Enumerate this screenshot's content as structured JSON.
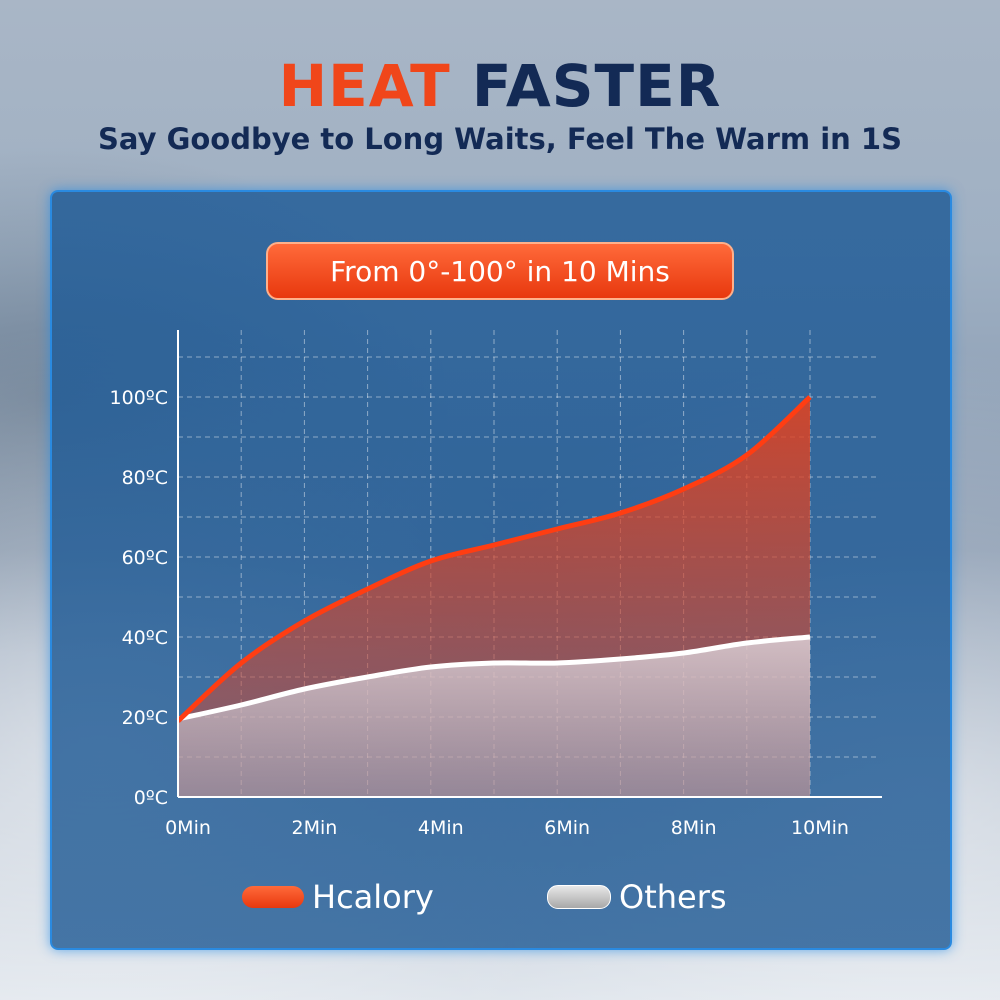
{
  "header": {
    "title_accent": "HEAT",
    "title_main": "FASTER",
    "subtitle": "Say Goodbye to Long Waits, Feel The Warm in 1S"
  },
  "badge": {
    "label": "From 0°-100° in 10 Mins"
  },
  "colors": {
    "hcalory": "#ff3d12",
    "others": "#ffffff",
    "accent": "#f0461a",
    "navy": "#132a55"
  },
  "chart_data": {
    "type": "area",
    "x": [
      0,
      1,
      2,
      3,
      4,
      5,
      6,
      7,
      8,
      9,
      10
    ],
    "xlim": [
      0,
      10
    ],
    "ylim": [
      0,
      100
    ],
    "x_ticks": [
      {
        "v": 0,
        "label": "0Min"
      },
      {
        "v": 2,
        "label": "2Min"
      },
      {
        "v": 4,
        "label": "4Min"
      },
      {
        "v": 6,
        "label": "6Min"
      },
      {
        "v": 8,
        "label": "8Min"
      },
      {
        "v": 10,
        "label": "10Min"
      }
    ],
    "y_ticks": [
      {
        "v": 0,
        "label": "0ºC"
      },
      {
        "v": 20,
        "label": "20ºC"
      },
      {
        "v": 40,
        "label": "40ºC"
      },
      {
        "v": 60,
        "label": "60ºC"
      },
      {
        "v": 80,
        "label": "80ºC"
      },
      {
        "v": 100,
        "label": "100ºC"
      }
    ],
    "grid": true,
    "legend_position": "bottom",
    "series": [
      {
        "name": "Hcalory",
        "color": "#ff3d12",
        "values": [
          19,
          33.5,
          44,
          52,
          59,
          63,
          67,
          71,
          77,
          85.5,
          100
        ]
      },
      {
        "name": "Others",
        "color": "#ffffff",
        "values": [
          19.5,
          23,
          27,
          30,
          32.5,
          33.5,
          33.5,
          34.5,
          36,
          38.5,
          40
        ]
      }
    ]
  }
}
